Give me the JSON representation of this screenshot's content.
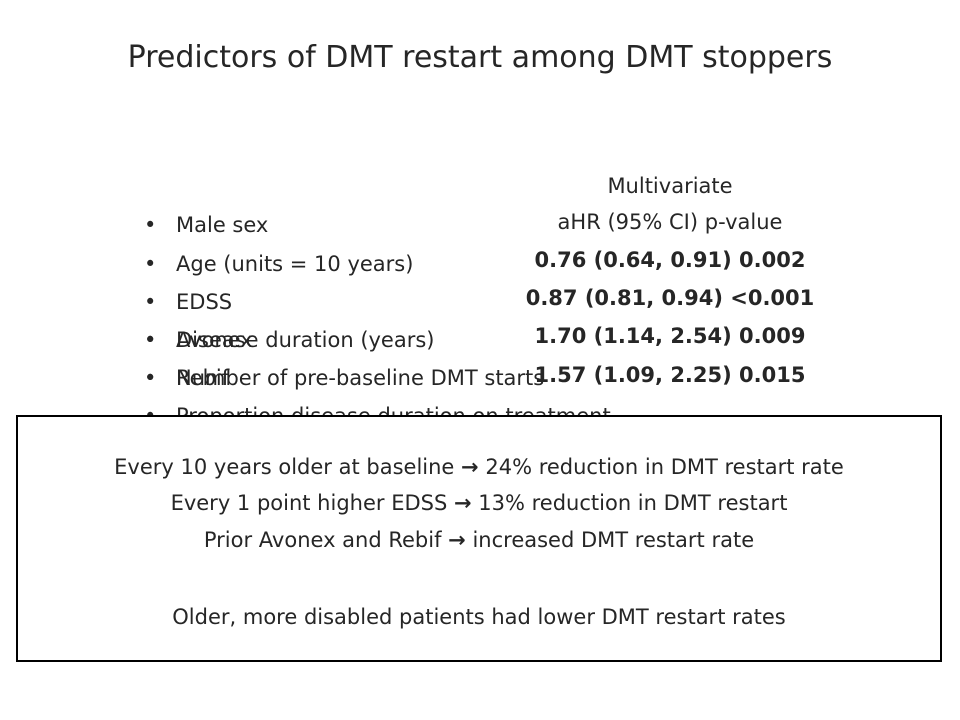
{
  "title": "Predictors of DMT restart among DMT stoppers",
  "header": {
    "line1": "Multivariate",
    "line2": "aHR (95% CI) p-value"
  },
  "bullets": [
    "Male sex",
    "Age (units = 10 years)",
    "EDSS",
    "Disease duration (years)",
    "Number of pre-baseline DMT starts",
    "Proportion disease duration on treatment",
    "Avonex",
    "Rebif"
  ],
  "results": [
    "0.76 (0.64, 0.91) 0.002",
    "0.87 (0.81, 0.94) <0.001",
    "1.70 (1.14, 2.54) 0.009",
    "1.57 (1.09, 2.25) 0.015"
  ],
  "summary": {
    "arrow": "→",
    "line1_pre": "Every 10 years older at baseline",
    "line1_post": "24% reduction in DMT restart rate",
    "line2_pre": "Every 1 point higher EDSS",
    "line2_post": "13% reduction in DMT restart",
    "line3_pre": "Prior Avonex and Rebif",
    "line3_post": "increased DMT restart rate",
    "conclusion": "Older, more disabled patients had lower DMT restart rates"
  }
}
